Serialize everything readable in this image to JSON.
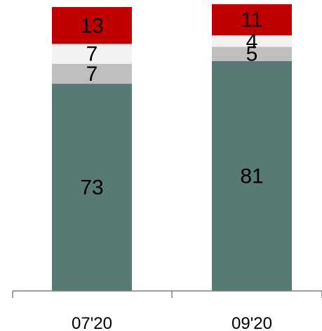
{
  "chart_data": {
    "type": "bar",
    "stacked": true,
    "categories": [
      "07'20",
      "09'20"
    ],
    "series": [
      {
        "values": [
          73,
          81
        ],
        "color": "#587A74"
      },
      {
        "values": [
          7,
          5
        ],
        "color": "#BFBFBF"
      },
      {
        "values": [
          7,
          4
        ],
        "color": "#F2F2F2"
      },
      {
        "values": [
          13,
          11
        ],
        "color": "#C00000"
      }
    ],
    "ylim": [
      0,
      100
    ],
    "grid": false,
    "title": "",
    "xlabel": "",
    "ylabel": ""
  }
}
